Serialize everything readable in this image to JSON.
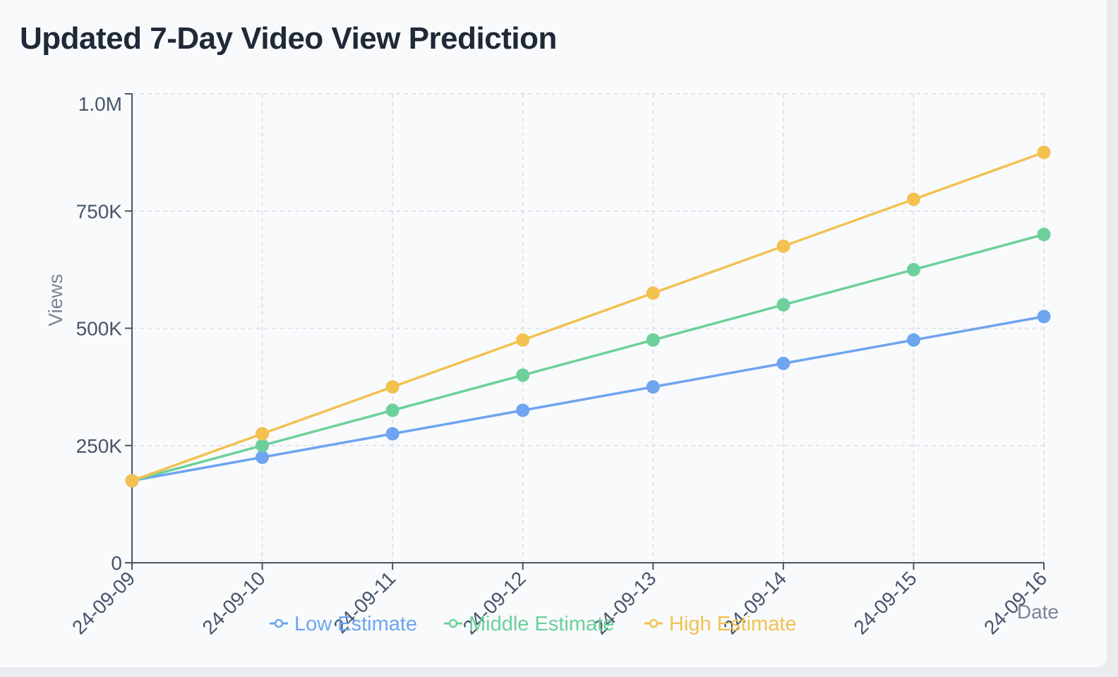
{
  "title": "Updated 7-Day Video View Prediction",
  "chart_data": {
    "type": "line",
    "xlabel": "Date",
    "ylabel": "Views",
    "x": [
      "2024-09-09",
      "2024-09-10",
      "2024-09-11",
      "2024-09-12",
      "2024-09-13",
      "2024-09-14",
      "2024-09-15",
      "2024-09-16"
    ],
    "x_tick_labels": [
      "24-09-09",
      "24-09-10",
      "24-09-11",
      "24-09-12",
      "24-09-13",
      "24-09-14",
      "24-09-15",
      "24-09-16"
    ],
    "ylim": [
      0,
      1000000
    ],
    "y_ticks": [
      0,
      250000,
      500000,
      750000,
      1000000
    ],
    "y_tick_labels": [
      "0",
      "250K",
      "500K",
      "750K",
      "1.0M"
    ],
    "grid": true,
    "legend_position": "bottom",
    "series": [
      {
        "name": "Low Estimate",
        "color": "#6ea4f0",
        "values": [
          175000,
          225000,
          275000,
          325000,
          375000,
          425000,
          475000,
          525000
        ]
      },
      {
        "name": "Middle Estimate",
        "color": "#6dd09a",
        "values": [
          175000,
          250000,
          325000,
          400000,
          475000,
          550000,
          625000,
          700000
        ]
      },
      {
        "name": "High Estimate",
        "color": "#f2c14f",
        "values": [
          175000,
          275000,
          375000,
          475000,
          575000,
          675000,
          775000,
          875000
        ]
      }
    ]
  }
}
